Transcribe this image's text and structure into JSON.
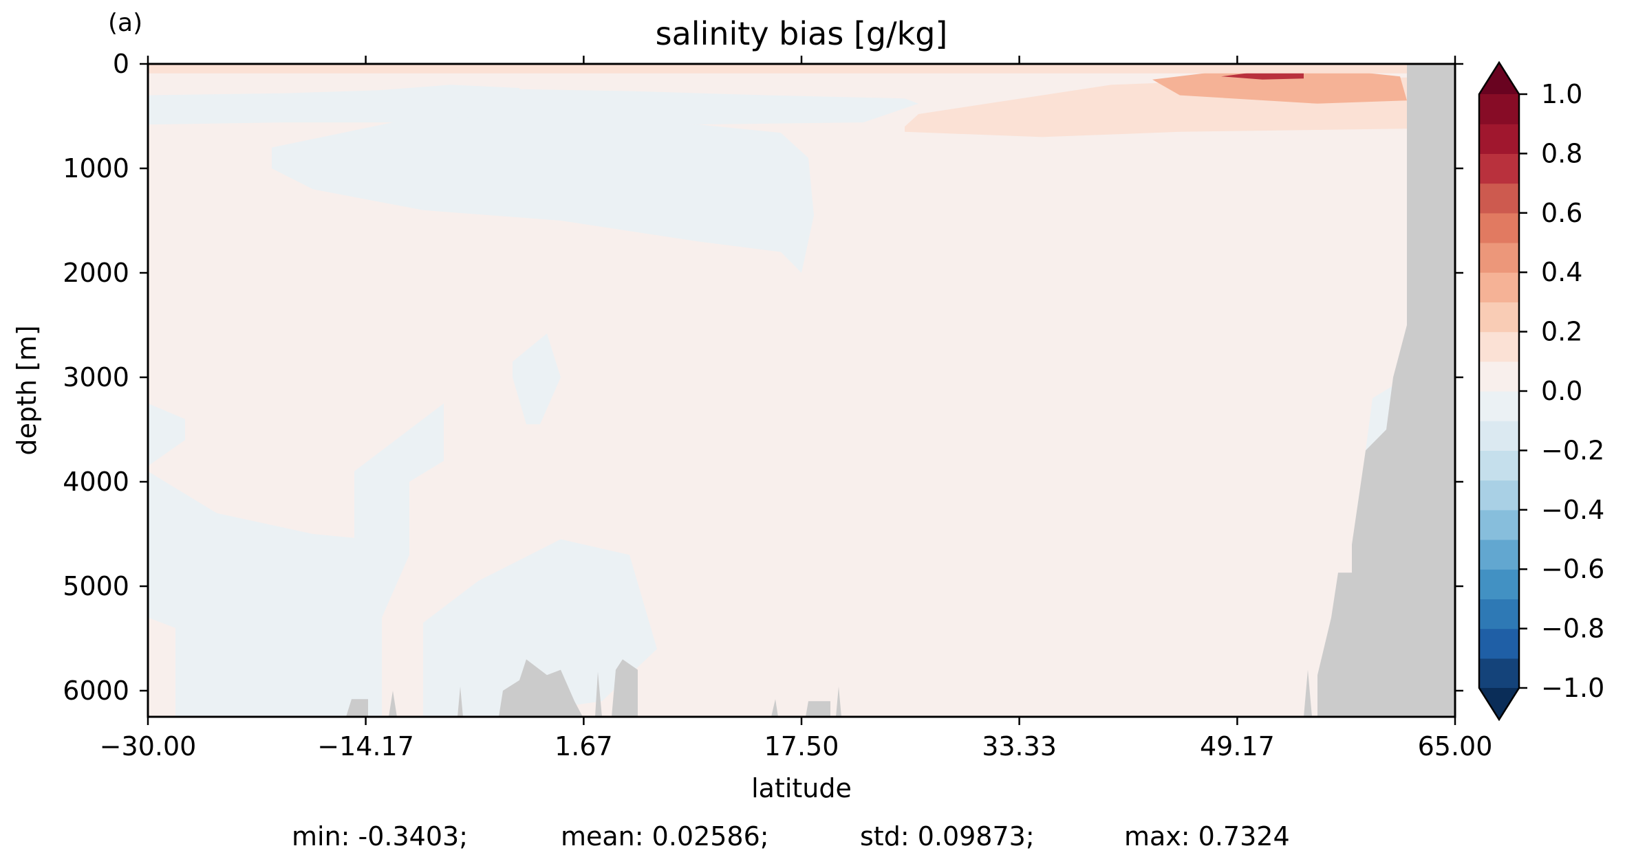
{
  "chart_data": {
    "type": "heatmap",
    "panel_label": "(a)",
    "title": "salinity bias [g/kg]",
    "xlabel": "latitude",
    "ylabel": "depth [m]",
    "xlim": [
      -30.0,
      65.0
    ],
    "ylim": [
      6250,
      0
    ],
    "y_inverted": true,
    "x_ticks": [
      -30.0,
      -14.17,
      1.67,
      17.5,
      33.33,
      49.17,
      65.0
    ],
    "x_tick_labels": [
      "−30.00",
      "−14.17",
      "1.67",
      "17.50",
      "33.33",
      "49.17",
      "65.00"
    ],
    "y_ticks": [
      0,
      1000,
      2000,
      3000,
      4000,
      5000,
      6000
    ],
    "y_tick_labels": [
      "0",
      "1000",
      "2000",
      "3000",
      "4000",
      "5000",
      "6000"
    ],
    "colorbar": {
      "levels": [
        -1.0,
        -0.9,
        -0.8,
        -0.7,
        -0.6,
        -0.5,
        -0.4,
        -0.3,
        -0.2,
        -0.1,
        0.0,
        0.1,
        0.2,
        0.3,
        0.4,
        0.5,
        0.6,
        0.7,
        0.8,
        0.9,
        1.0
      ],
      "colors": [
        "#14437a",
        "#1f5fa6",
        "#2e79b5",
        "#4291c3",
        "#62a7d0",
        "#87bedc",
        "#a9d0e5",
        "#c5dfec",
        "#dbe9f1",
        "#ebf1f4",
        "#f8efec",
        "#fbe1d5",
        "#f9ccb5",
        "#f5b296",
        "#ec977a",
        "#e17a61",
        "#cd5a4f",
        "#b9313d",
        "#a0172e",
        "#870c26"
      ],
      "under_color": "#0a2d58",
      "over_color": "#690320",
      "extend": "both",
      "tick_values": [
        1.0,
        0.8,
        0.6,
        0.4,
        0.2,
        0.0,
        -0.2,
        -0.4,
        -0.6,
        -0.8,
        -1.0
      ],
      "tick_labels": [
        "1.0",
        "0.8",
        "0.6",
        "0.4",
        "0.2",
        "0.0",
        "−0.2",
        "−0.4",
        "−0.6",
        "−0.8",
        "−1.0"
      ]
    },
    "land_color": "#cbcbcb",
    "field_regions": [
      {
        "name": "background",
        "bias": 0.03,
        "polygon": [
          [
            -30,
            0
          ],
          [
            61.5,
            0
          ],
          [
            61.5,
            6250
          ],
          [
            -30,
            6250
          ]
        ]
      },
      {
        "name": "southern-surface-fresh",
        "bias": -0.05,
        "polygon": [
          [
            -30,
            300
          ],
          [
            -20,
            280
          ],
          [
            -8,
            230
          ],
          [
            5,
            260
          ],
          [
            15,
            300
          ],
          [
            25,
            330
          ],
          [
            26,
            380
          ],
          [
            22,
            560
          ],
          [
            10,
            580
          ],
          [
            -5,
            560
          ],
          [
            -20,
            560
          ],
          [
            -30,
            580
          ]
        ]
      },
      {
        "name": "intermediate-fresh-tongue",
        "bias": -0.04,
        "polygon": [
          [
            -21,
            800
          ],
          [
            -10,
            500
          ],
          [
            0,
            560
          ],
          [
            10,
            580
          ],
          [
            16,
            660
          ],
          [
            18,
            900
          ],
          [
            18.4,
            1450
          ],
          [
            17.5,
            2000
          ],
          [
            16,
            1800
          ],
          [
            10,
            1700
          ],
          [
            0,
            1500
          ],
          [
            -10,
            1400
          ],
          [
            -18,
            1200
          ],
          [
            -21,
            1000
          ]
        ]
      },
      {
        "name": "upper-fresh-core",
        "bias": -0.1,
        "polygon": [
          [
            -20,
            340
          ],
          [
            -14,
            260
          ],
          [
            -8,
            200
          ],
          [
            -3,
            230
          ],
          [
            -3,
            330
          ],
          [
            -10,
            350
          ],
          [
            -16,
            380
          ],
          [
            -20,
            400
          ]
        ]
      },
      {
        "name": "deep-south-fresh-1",
        "bias": -0.04,
        "polygon": [
          [
            -30,
            3250
          ],
          [
            -27.3,
            3400
          ],
          [
            -27.3,
            3600
          ],
          [
            -30,
            3850
          ]
        ]
      },
      {
        "name": "deep-south-fresh-2",
        "bias": -0.04,
        "polygon": [
          [
            -30,
            3900
          ],
          [
            -25,
            4300
          ],
          [
            -18,
            4500
          ],
          [
            -14,
            4550
          ],
          [
            -14,
            6250
          ],
          [
            -28,
            6250
          ],
          [
            -28,
            5400
          ],
          [
            -30,
            5300
          ]
        ]
      },
      {
        "name": "deep-mid-fresh",
        "bias": -0.04,
        "polygon": [
          [
            -15,
            3900
          ],
          [
            -8.5,
            3250
          ],
          [
            -8.5,
            3800
          ],
          [
            -11,
            4000
          ],
          [
            -11,
            4700
          ],
          [
            -13,
            5300
          ],
          [
            -13,
            6250
          ],
          [
            -15,
            6250
          ]
        ]
      },
      {
        "name": "abyssal-fresh",
        "bias": -0.04,
        "polygon": [
          [
            -10,
            5350
          ],
          [
            -6,
            4950
          ],
          [
            0,
            4550
          ],
          [
            5,
            4700
          ],
          [
            7,
            5600
          ],
          [
            3,
            6100
          ],
          [
            -5,
            6250
          ],
          [
            -10,
            6250
          ]
        ]
      },
      {
        "name": "deep-equatorial-fresh",
        "bias": -0.04,
        "polygon": [
          [
            -3.5,
            2850
          ],
          [
            -1,
            2580
          ],
          [
            0,
            3000
          ],
          [
            -1.5,
            3450
          ],
          [
            -2.5,
            3450
          ],
          [
            -3.5,
            3000
          ]
        ]
      },
      {
        "name": "north-surface-salty",
        "bias": 0.12,
        "polygon": [
          [
            25,
            600
          ],
          [
            26,
            480
          ],
          [
            30,
            400
          ],
          [
            35,
            300
          ],
          [
            40,
            200
          ],
          [
            50,
            150
          ],
          [
            61.5,
            130
          ],
          [
            61.5,
            620
          ],
          [
            45,
            650
          ],
          [
            35,
            700
          ],
          [
            25,
            650
          ]
        ]
      },
      {
        "name": "north-surface-salty-core",
        "bias": 0.35,
        "polygon": [
          [
            43,
            150
          ],
          [
            48,
            70
          ],
          [
            56,
            50
          ],
          [
            61,
            120
          ],
          [
            61.5,
            350
          ],
          [
            55,
            380
          ],
          [
            45,
            300
          ]
        ]
      },
      {
        "name": "north-surface-salty-max",
        "bias": 0.7,
        "polygon": [
          [
            48,
            120
          ],
          [
            51,
            70
          ],
          [
            54,
            80
          ],
          [
            54,
            140
          ],
          [
            51,
            150
          ]
        ]
      },
      {
        "name": "surface-film",
        "bias": 0.15,
        "polygon": [
          [
            -30,
            0
          ],
          [
            61.5,
            0
          ],
          [
            61.5,
            90
          ],
          [
            -30,
            90
          ]
        ]
      },
      {
        "name": "north-deep-fresh",
        "bias": -0.04,
        "polygon": [
          [
            59,
            3200
          ],
          [
            61.5,
            3000
          ],
          [
            61.5,
            3700
          ],
          [
            60,
            4000
          ],
          [
            59,
            4700
          ],
          [
            58,
            4700
          ],
          [
            58,
            4200
          ]
        ]
      }
    ],
    "land_polygons": [
      {
        "name": "northern-continent",
        "polygon": [
          [
            61.5,
            0
          ],
          [
            65,
            0
          ],
          [
            65,
            6250
          ],
          [
            55,
            6250
          ],
          [
            55,
            5850
          ],
          [
            56,
            5300
          ],
          [
            56.5,
            4870
          ],
          [
            57.5,
            4870
          ],
          [
            57.5,
            4600
          ],
          [
            58.5,
            3700
          ],
          [
            60,
            3500
          ],
          [
            60.5,
            3000
          ],
          [
            61.5,
            2500
          ]
        ]
      },
      {
        "name": "ridge-a",
        "polygon": [
          [
            -15.6,
            6250
          ],
          [
            -15.2,
            6080
          ],
          [
            -14.0,
            6080
          ],
          [
            -14.0,
            6250
          ]
        ]
      },
      {
        "name": "ridge-b",
        "polygon": [
          [
            -12.5,
            6250
          ],
          [
            -12.2,
            6000
          ],
          [
            -11.9,
            6250
          ]
        ]
      },
      {
        "name": "ridge-c",
        "polygon": [
          [
            -7.5,
            6250
          ],
          [
            -7.3,
            5960
          ],
          [
            -7.1,
            6250
          ]
        ]
      },
      {
        "name": "ridge-d",
        "polygon": [
          [
            -4.5,
            6250
          ],
          [
            -4.2,
            6000
          ],
          [
            -3.0,
            5900
          ],
          [
            -2.5,
            5700
          ],
          [
            -1.0,
            5850
          ],
          [
            0.0,
            5800
          ],
          [
            1.0,
            6100
          ],
          [
            1.6,
            6250
          ]
        ]
      },
      {
        "name": "ridge-e",
        "polygon": [
          [
            2.5,
            6250
          ],
          [
            2.7,
            5820
          ],
          [
            3.0,
            6250
          ]
        ]
      },
      {
        "name": "ridge-f",
        "polygon": [
          [
            3.7,
            6250
          ],
          [
            4.0,
            5800
          ],
          [
            4.5,
            5700
          ],
          [
            5.6,
            5800
          ],
          [
            5.6,
            6250
          ]
        ]
      },
      {
        "name": "ridge-g",
        "polygon": [
          [
            15.3,
            6250
          ],
          [
            15.6,
            6080
          ],
          [
            15.8,
            6250
          ]
        ]
      },
      {
        "name": "ridge-h",
        "polygon": [
          [
            17.8,
            6250
          ],
          [
            18.0,
            6100
          ],
          [
            19.6,
            6100
          ],
          [
            19.6,
            6250
          ]
        ]
      },
      {
        "name": "ridge-i",
        "polygon": [
          [
            20.0,
            6250
          ],
          [
            20.2,
            5960
          ],
          [
            20.4,
            6250
          ]
        ]
      },
      {
        "name": "ridge-j",
        "polygon": [
          [
            54.0,
            6250
          ],
          [
            54.3,
            5800
          ],
          [
            54.6,
            6250
          ]
        ]
      }
    ]
  },
  "stats": {
    "min": "min: -0.3403;",
    "mean": "mean: 0.02586;",
    "std": "std: 0.09873;",
    "max": "max: 0.7324"
  }
}
